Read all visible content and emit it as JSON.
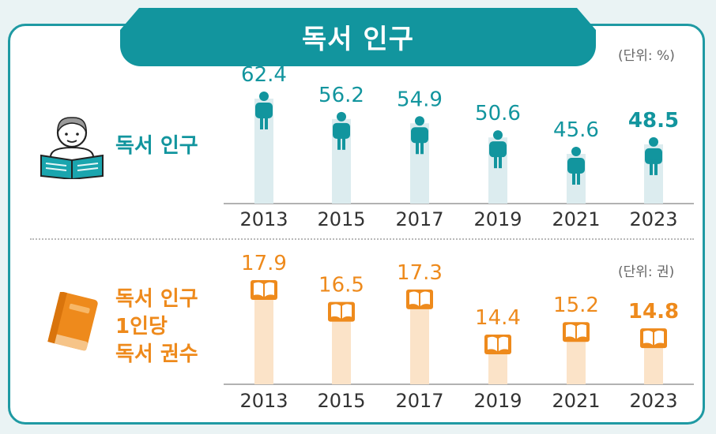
{
  "title": "독서 인구",
  "colors": {
    "teal": "#12959e",
    "orange": "#ee8a1c",
    "teal_bg": "#dcecef",
    "orange_bg": "#fbe3c8"
  },
  "chart_data": [
    {
      "type": "bar",
      "label": "독서 인구",
      "unit": "(단위: %)",
      "categories": [
        "2013",
        "2015",
        "2017",
        "2019",
        "2021",
        "2023"
      ],
      "values": [
        62.4,
        56.2,
        54.9,
        50.6,
        45.6,
        48.5
      ],
      "value_labels": [
        "62.4",
        "56.2",
        "54.9",
        "50.6",
        "45.6",
        "48.5"
      ],
      "highlight_last": true,
      "marker_icon": "person-icon",
      "color": "#12959e"
    },
    {
      "type": "bar",
      "label": [
        "독서 인구",
        "1인당",
        "독서 권수"
      ],
      "unit": "(단위: 권)",
      "categories": [
        "2013",
        "2015",
        "2017",
        "2019",
        "2021",
        "2023"
      ],
      "values": [
        17.9,
        16.5,
        17.3,
        14.4,
        15.2,
        14.8
      ],
      "value_labels": [
        "17.9",
        "16.5",
        "17.3",
        "14.4",
        "15.2",
        "14.8"
      ],
      "highlight_last": true,
      "marker_icon": "open-book-icon",
      "color": "#ee8a1c"
    }
  ]
}
